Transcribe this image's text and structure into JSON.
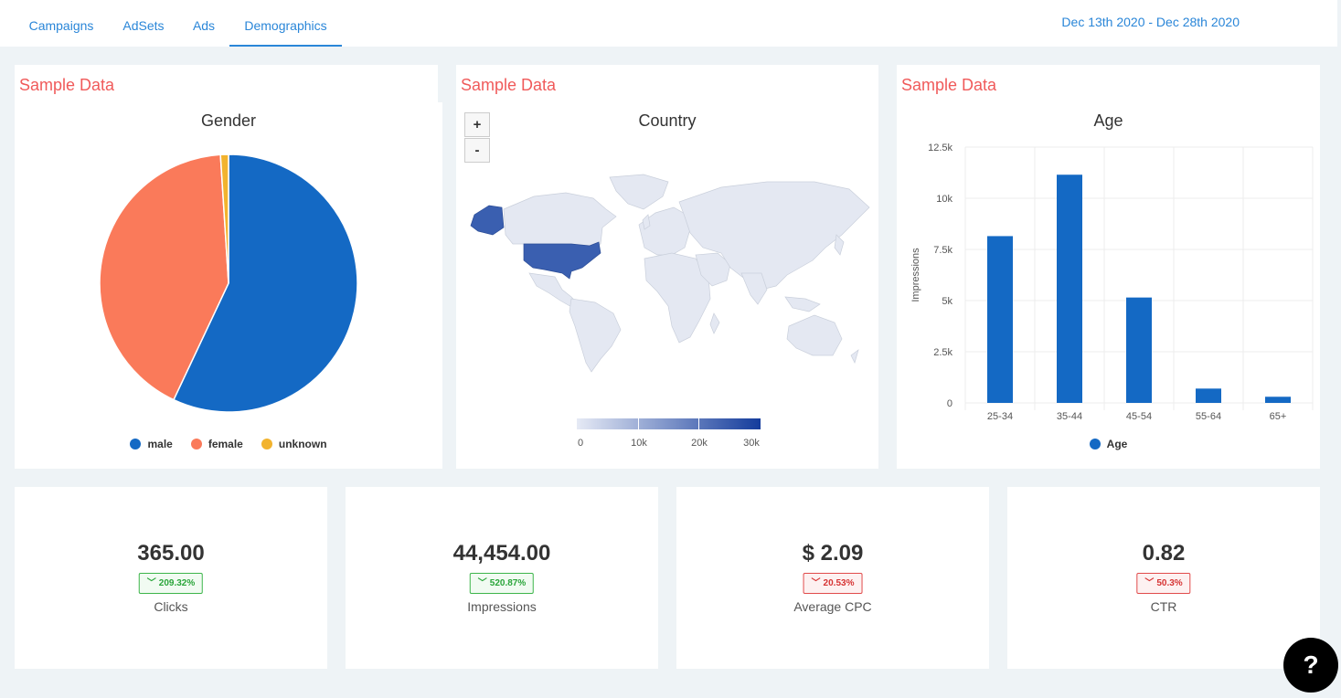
{
  "tabs": [
    {
      "label": "Campaigns"
    },
    {
      "label": "AdSets"
    },
    {
      "label": "Ads"
    },
    {
      "label": "Demographics"
    }
  ],
  "active_tab": "Demographics",
  "date_range": "Dec 13th 2020 - Dec 28th 2020",
  "cards": {
    "gender": {
      "sample_label": "Sample Data",
      "title": "Gender"
    },
    "country": {
      "sample_label": "Sample Data",
      "title": "Country"
    },
    "age": {
      "sample_label": "Sample Data",
      "title": "Age"
    }
  },
  "map": {
    "zoom_in_label": "+",
    "zoom_out_label": "-",
    "colorbar_ticks": [
      "0",
      "10k",
      "20k",
      "30k"
    ]
  },
  "chart_data": [
    {
      "type": "pie",
      "title": "Gender",
      "categories": [
        "male",
        "female",
        "unknown"
      ],
      "values": [
        57,
        42,
        1
      ],
      "colors": [
        "#1469c4",
        "#fa7a5a",
        "#f2b32e"
      ],
      "legend_position": "bottom"
    },
    {
      "type": "bar",
      "title": "Age",
      "categories": [
        "25-34",
        "35-44",
        "45-54",
        "55-64",
        "65+"
      ],
      "series": [
        {
          "name": "Age",
          "values": [
            8150,
            11150,
            5150,
            700,
            300
          ]
        }
      ],
      "ylabel": "Impressions",
      "ylim": [
        0,
        12500
      ],
      "yticks": [
        "0",
        "2.5k",
        "5k",
        "7.5k",
        "10k",
        "12.5k"
      ],
      "grid": true,
      "color": "#1469c4",
      "legend_position": "bottom"
    }
  ],
  "stats": [
    {
      "value": "365.00",
      "change": "209.32%",
      "trend": "down",
      "status": "green",
      "label": "Clicks"
    },
    {
      "value": "44,454.00",
      "change": "520.87%",
      "trend": "down",
      "status": "green",
      "label": "Impressions"
    },
    {
      "value": "$ 2.09",
      "change": "20.53%",
      "trend": "down",
      "status": "red",
      "label": "Average CPC"
    },
    {
      "value": "0.82",
      "change": "50.3%",
      "trend": "down",
      "status": "red",
      "label": "CTR"
    }
  ],
  "help": {
    "label": "?"
  },
  "colors": {
    "accent": "#2a86d8",
    "sample_label": "#f05a5a",
    "positive": "#2aa53a",
    "negative": "#d63333"
  }
}
